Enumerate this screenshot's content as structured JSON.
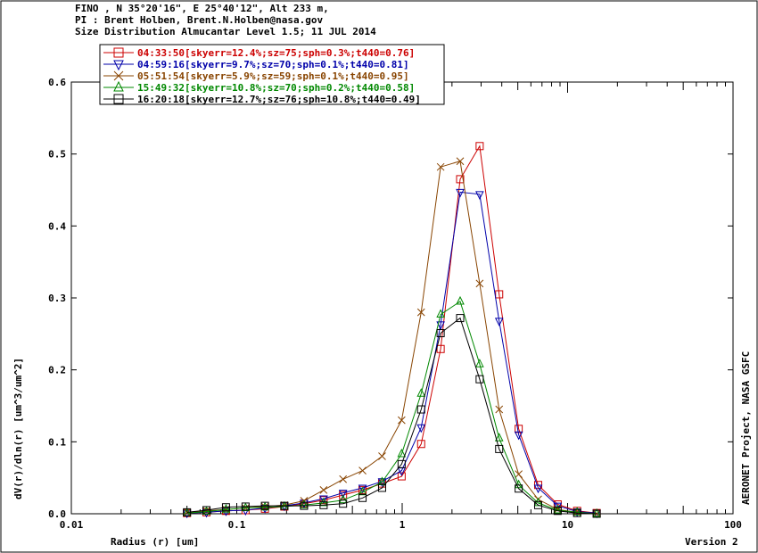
{
  "header": {
    "line1": "FINO , N 35°20'16\", E 25°40'12\", Alt 233 m,",
    "line2": "PI : Brent Holben, Brent.N.Holben@nasa.gov",
    "line3": "Size Distribution Almucantar Level 1.5; 11 JUL 2014"
  },
  "footer": {
    "side_text": "AERONET Project, NASA GSFC",
    "version": "Version 2"
  },
  "chart_data": {
    "type": "line",
    "xscale": "log",
    "xlabel": "Radius (r) [um]",
    "ylabel": "dV(r)/dln(r) [um^3/um^2]",
    "xlim": [
      0.01,
      100
    ],
    "ylim": [
      0,
      0.6
    ],
    "xticks": [
      "0.01",
      "0.1",
      "1",
      "10",
      "100"
    ],
    "yticks": [
      "0.0",
      "0.1",
      "0.2",
      "0.3",
      "0.4",
      "0.5",
      "0.6"
    ],
    "legend_position": "top-left",
    "x": [
      0.05,
      0.0656,
      0.0861,
      0.113,
      0.148,
      0.194,
      0.255,
      0.335,
      0.439,
      0.576,
      0.756,
      0.992,
      1.302,
      1.708,
      2.241,
      2.94,
      3.857,
      5.06,
      6.638,
      8.708,
      11.42,
      14.99
    ],
    "series": [
      {
        "name": "04:33:50[skyerr=12.4%;sz=75;sph=0.3%;t440=0.76]",
        "color": "#cc0000",
        "marker": "square",
        "values": [
          0.001,
          0.002,
          0.004,
          0.005,
          0.007,
          0.01,
          0.014,
          0.019,
          0.026,
          0.033,
          0.042,
          0.052,
          0.097,
          0.229,
          0.465,
          0.511,
          0.305,
          0.118,
          0.04,
          0.013,
          0.004,
          0.001
        ]
      },
      {
        "name": "04:59:16[skyerr=9.7%;sz=70;sph=0.1%;t440=0.81]",
        "color": "#0000aa",
        "marker": "triangle-down",
        "values": [
          0.001,
          0.002,
          0.004,
          0.005,
          0.008,
          0.011,
          0.015,
          0.021,
          0.029,
          0.036,
          0.045,
          0.06,
          0.12,
          0.263,
          0.447,
          0.444,
          0.268,
          0.11,
          0.036,
          0.011,
          0.003,
          0.001
        ]
      },
      {
        "name": "05:51:54[skyerr=5.9%;sz=59;sph=0.1%;t440=0.95]",
        "color": "#884400",
        "marker": "x",
        "values": [
          0.002,
          0.004,
          0.006,
          0.008,
          0.01,
          0.012,
          0.018,
          0.033,
          0.048,
          0.06,
          0.08,
          0.13,
          0.28,
          0.482,
          0.49,
          0.32,
          0.145,
          0.055,
          0.02,
          0.006,
          0.002,
          0.0
        ]
      },
      {
        "name": "15:49:32[skyerr=10.8%;sz=70;sph=0.2%;t440=0.58]",
        "color": "#008800",
        "marker": "triangle-up",
        "values": [
          0.001,
          0.003,
          0.006,
          0.008,
          0.009,
          0.01,
          0.012,
          0.015,
          0.019,
          0.03,
          0.044,
          0.083,
          0.167,
          0.277,
          0.295,
          0.208,
          0.105,
          0.04,
          0.015,
          0.005,
          0.002,
          0.0
        ]
      },
      {
        "name": "16:20:18[skyerr=12.7%;sz=76;sph=10.8%;t440=0.49]",
        "color": "#000000",
        "marker": "square",
        "values": [
          0.002,
          0.005,
          0.009,
          0.01,
          0.011,
          0.011,
          0.011,
          0.012,
          0.014,
          0.022,
          0.036,
          0.069,
          0.145,
          0.251,
          0.272,
          0.187,
          0.09,
          0.035,
          0.012,
          0.004,
          0.001,
          0.0
        ]
      }
    ]
  }
}
